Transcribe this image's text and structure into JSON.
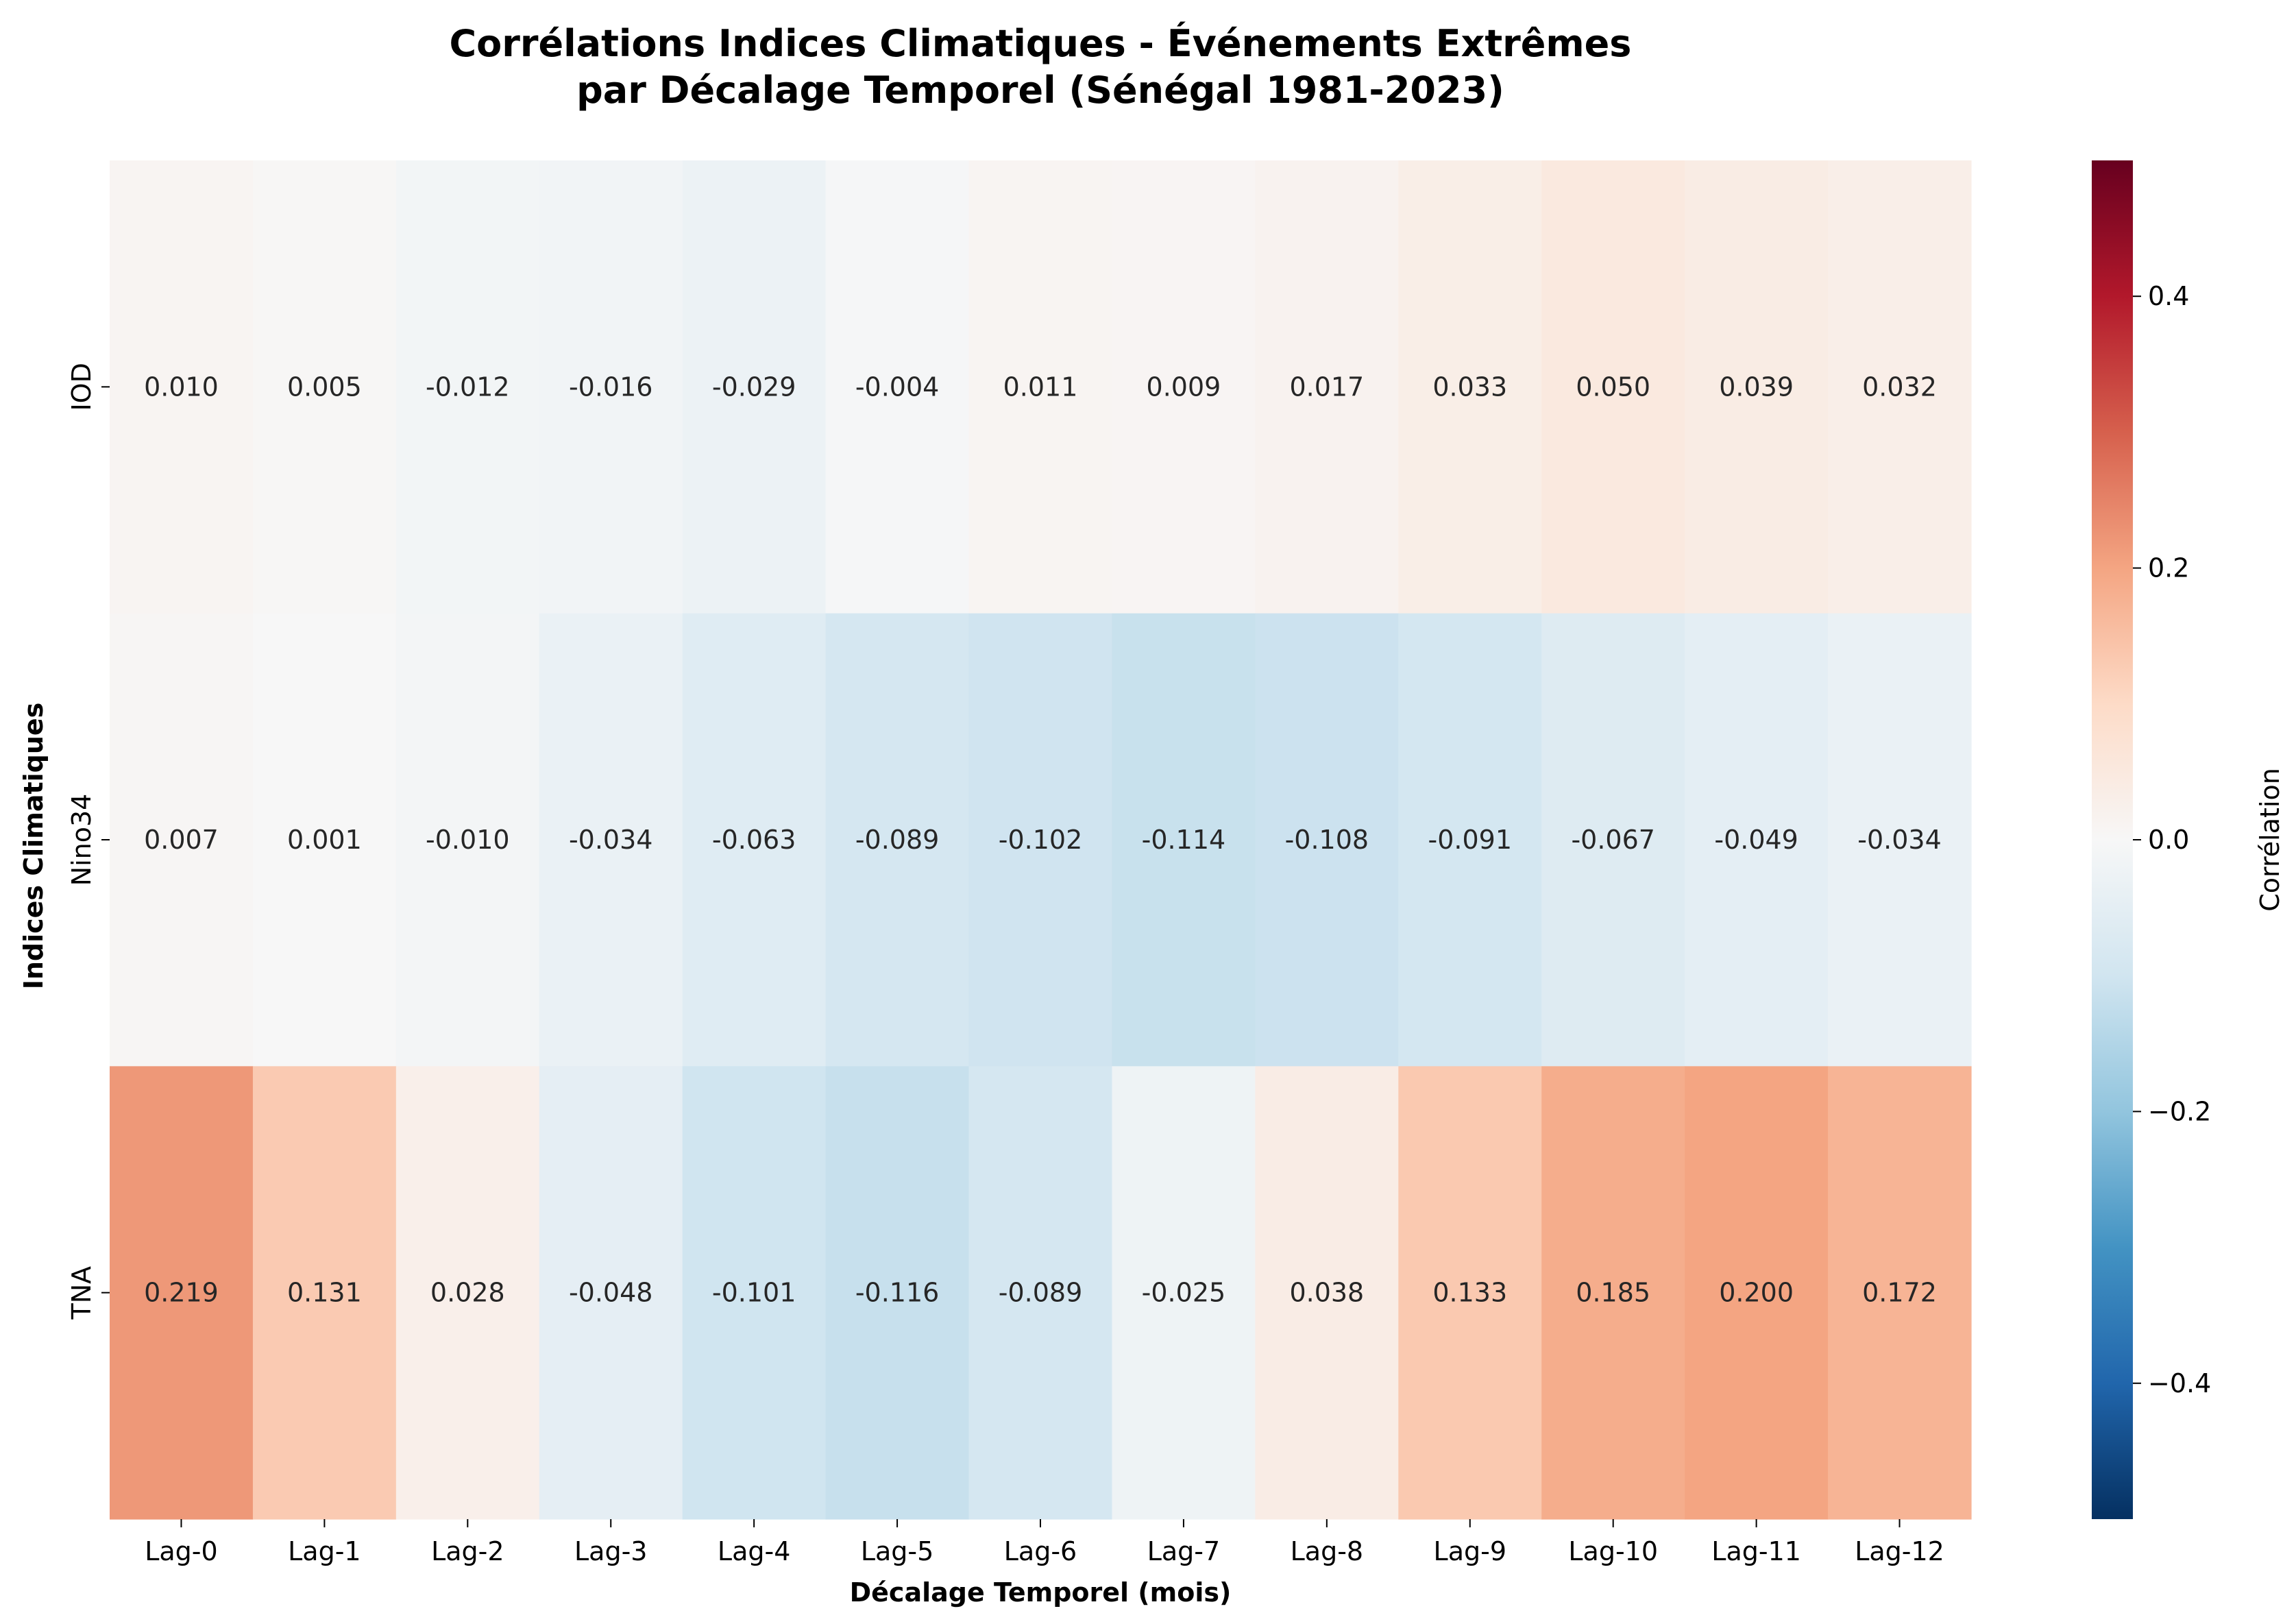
{
  "chart_data": {
    "type": "heatmap",
    "title_lines": [
      "Corrélations Indices Climatiques - Événements Extrêmes",
      "par Décalage Temporel (Sénégal 1981-2023)"
    ],
    "xlabel": "Décalage Temporel (mois)",
    "ylabel": "Indices Climatiques",
    "x_categories": [
      "Lag-0",
      "Lag-1",
      "Lag-2",
      "Lag-3",
      "Lag-4",
      "Lag-5",
      "Lag-6",
      "Lag-7",
      "Lag-8",
      "Lag-9",
      "Lag-10",
      "Lag-11",
      "Lag-12"
    ],
    "y_categories": [
      "IOD",
      "Nino34",
      "TNA"
    ],
    "values": [
      [
        0.01,
        0.005,
        -0.012,
        -0.016,
        -0.029,
        -0.004,
        0.011,
        0.009,
        0.017,
        0.033,
        0.05,
        0.039,
        0.032
      ],
      [
        0.007,
        0.001,
        -0.01,
        -0.034,
        -0.063,
        -0.089,
        -0.102,
        -0.114,
        -0.108,
        -0.091,
        -0.067,
        -0.049,
        -0.034
      ],
      [
        0.219,
        0.131,
        0.028,
        -0.048,
        -0.101,
        -0.116,
        -0.089,
        -0.025,
        0.038,
        0.133,
        0.185,
        0.2,
        0.172
      ]
    ],
    "value_labels": [
      [
        "0.010",
        "0.005",
        "-0.012",
        "-0.016",
        "-0.029",
        "-0.004",
        "0.011",
        "0.009",
        "0.017",
        "0.033",
        "0.050",
        "0.039",
        "0.032"
      ],
      [
        "0.007",
        "0.001",
        "-0.010",
        "-0.034",
        "-0.063",
        "-0.089",
        "-0.102",
        "-0.114",
        "-0.108",
        "-0.091",
        "-0.067",
        "-0.049",
        "-0.034"
      ],
      [
        "0.219",
        "0.131",
        "0.028",
        "-0.048",
        "-0.101",
        "-0.116",
        "-0.089",
        "-0.025",
        "0.038",
        "0.133",
        "0.185",
        "0.200",
        "0.172"
      ]
    ],
    "colormap": "RdBu_r",
    "colormap_stops": [
      "#053061",
      "#2166ac",
      "#4393c3",
      "#92c5de",
      "#d1e5f0",
      "#f7f7f7",
      "#fddbc7",
      "#f4a582",
      "#d6604d",
      "#b2182b",
      "#67001f"
    ],
    "vmin": -0.5,
    "vmax": 0.5,
    "colorbar": {
      "label": "Corrélation",
      "ticks": [
        0.4,
        0.2,
        0.0,
        -0.2,
        -0.4
      ],
      "tick_labels": [
        "0.4",
        "0.2",
        "0.0",
        "−0.2",
        "−0.4"
      ]
    }
  }
}
